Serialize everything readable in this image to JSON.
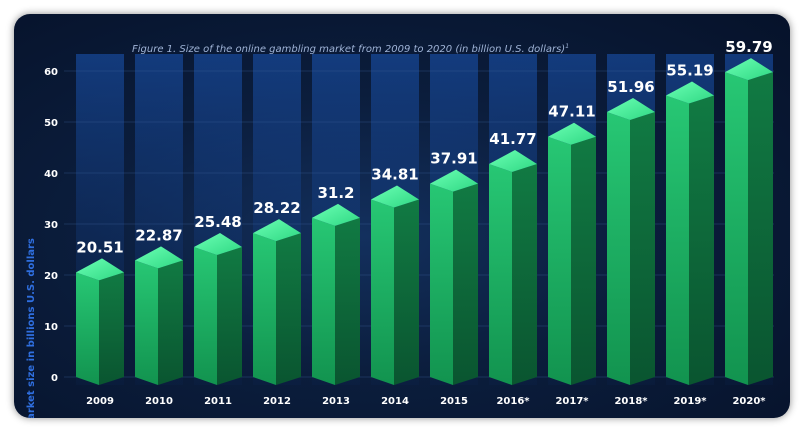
{
  "chart_data": {
    "type": "bar",
    "title": "Figure 1. Size of the online gambling market from 2009 to 2020 (in billion U.S. dollars)",
    "title_note": "1",
    "xlabel": "",
    "ylabel": "Market size in billions U.S. dollars",
    "ylim": [
      0,
      60
    ],
    "yticks": [
      0,
      10,
      20,
      30,
      40,
      50,
      60
    ],
    "categories": [
      "2009",
      "2010",
      "2011",
      "2012",
      "2013",
      "2014",
      "2015",
      "2016*",
      "2017*",
      "2018*",
      "2019*",
      "2020*"
    ],
    "values": [
      20.51,
      22.87,
      25.48,
      28.22,
      31.2,
      34.81,
      37.91,
      41.77,
      47.11,
      51.96,
      55.19,
      59.79
    ],
    "data_labels": [
      "20.51",
      "22.87",
      "25.48",
      "28.22",
      "31.2",
      "34.81",
      "37.91",
      "41.77",
      "47.11",
      "51.96",
      "55.19",
      "59.79"
    ],
    "grid": true,
    "legend": "none"
  },
  "colors": {
    "bar_front": "#1fb468",
    "bar_side": "#0f6b3c",
    "bar_top": "#4cf29b",
    "background": "#0b1d3c",
    "ylabel": "#2f6fe0"
  }
}
